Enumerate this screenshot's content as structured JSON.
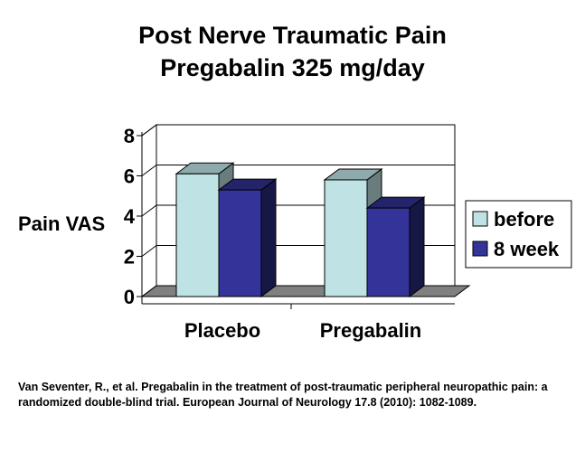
{
  "chart_data": {
    "type": "bar",
    "title": "Post Nerve Traumatic Pain",
    "subtitle": "Pregabalin 325 mg/day",
    "xlabel": "",
    "ylabel": "Pain VAS",
    "categories": [
      "Placebo",
      "Pregabalin"
    ],
    "series": [
      {
        "name": "before",
        "values": [
          6.1,
          5.8
        ],
        "color": "#BFE3E5"
      },
      {
        "name": "8 week",
        "values": [
          5.3,
          4.4
        ],
        "color": "#333399"
      }
    ],
    "ylim": [
      0,
      8
    ],
    "yticks": [
      "0",
      "2",
      "4",
      "6",
      "8"
    ],
    "grid": true,
    "legend_position": "right",
    "style": "3d"
  },
  "citation": "Van Seventer, R., et al. Pregabalin in the treatment of post-traumatic peripheral neuropathic pain: a randomized double-blind trial. European Journal of Neurology 17.8 (2010): 1082-1089."
}
